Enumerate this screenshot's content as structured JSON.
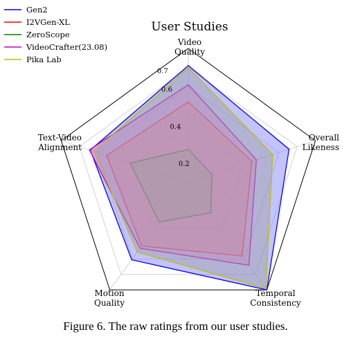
{
  "caption": "Figure 6. The raw ratings from our user studies.",
  "chart_data": {
    "type": "radar",
    "title": "User Studies",
    "axes": [
      [
        "Video",
        "Quality"
      ],
      [
        "Overall",
        "Likeness"
      ],
      [
        "Temporal",
        "Consistency"
      ],
      [
        "Motion",
        "Quality"
      ],
      [
        "Text-Video",
        "Alignment"
      ]
    ],
    "rticks": [
      0.2,
      0.4,
      0.6,
      0.7
    ],
    "rtick_labels": [
      "0.2",
      "0.4",
      "0.6",
      "0.7"
    ],
    "rlim": [
      0.1,
      0.8
    ],
    "grid": true,
    "legend_position": "top-left",
    "series": [
      {
        "name": "Gen2",
        "color": "#0000ff",
        "fill": "#7b7bff",
        "values": [
          0.71,
          0.655,
          0.8,
          0.605,
          0.64
        ]
      },
      {
        "name": "I2VGen-XL",
        "color": "#ff0000",
        "fill": "#ff7b7b",
        "values": [
          0.52,
          0.45,
          0.58,
          0.515,
          0.55
        ]
      },
      {
        "name": "ZeroScope",
        "color": "#008000",
        "fill": "#7bbd7b",
        "values": [
          0.27,
          0.23,
          0.3,
          0.36,
          0.42
        ]
      },
      {
        "name": "VideoCrafter(23.08)",
        "color": "#bf00bf",
        "fill": "#dc7bdc",
        "values": [
          0.61,
          0.475,
          0.64,
          0.53,
          0.645
        ]
      },
      {
        "name": "Pika Lab",
        "color": "#bfbf00",
        "fill": "#9e9e9e",
        "values": [
          0.7,
          0.565,
          0.79,
          0.555,
          0.62
        ]
      }
    ]
  }
}
